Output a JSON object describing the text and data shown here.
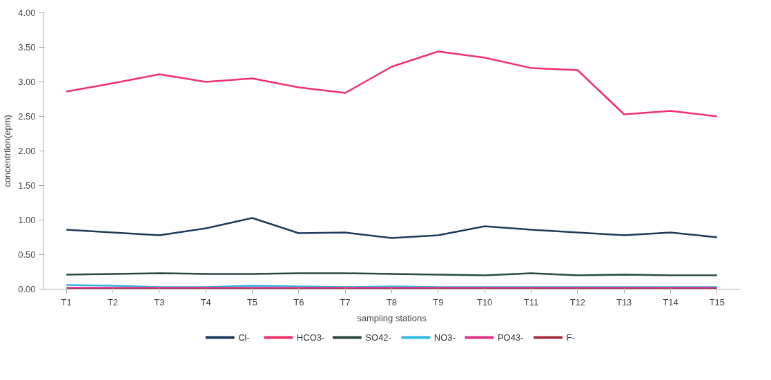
{
  "chart_data": {
    "type": "line",
    "xlabel": "sampling stations",
    "ylabel": "concentrtion(epm)",
    "categories": [
      "T1",
      "T2",
      "T3",
      "T4",
      "T5",
      "T6",
      "T7",
      "T8",
      "T9",
      "T10",
      "T11",
      "T12",
      "T13",
      "T14",
      "T15"
    ],
    "series": [
      {
        "name": "Cl-",
        "color": "#1f3a5a",
        "values": [
          0.86,
          0.82,
          0.78,
          0.88,
          1.03,
          0.81,
          0.82,
          0.74,
          0.78,
          0.91,
          0.86,
          0.82,
          0.78,
          0.82,
          0.75
        ]
      },
      {
        "name": "HCO3-",
        "color": "#f0306a",
        "values": [
          2.86,
          2.98,
          3.11,
          3.0,
          3.05,
          2.92,
          2.84,
          3.22,
          3.44,
          3.35,
          3.2,
          3.17,
          2.53,
          2.58,
          2.5
        ]
      },
      {
        "name": "SO42-",
        "color": "#2a4a3a",
        "values": [
          0.21,
          0.22,
          0.23,
          0.22,
          0.22,
          0.23,
          0.23,
          0.22,
          0.21,
          0.2,
          0.23,
          0.2,
          0.21,
          0.2,
          0.2
        ]
      },
      {
        "name": "NO3-",
        "color": "#30b8e0",
        "values": [
          0.06,
          0.05,
          0.03,
          0.03,
          0.05,
          0.04,
          0.03,
          0.04,
          0.03,
          0.03,
          0.03,
          0.03,
          0.03,
          0.03,
          0.03
        ]
      },
      {
        "name": "PO43-",
        "color": "#e0308a",
        "values": [
          0.02,
          0.02,
          0.02,
          0.02,
          0.02,
          0.02,
          0.02,
          0.02,
          0.02,
          0.02,
          0.02,
          0.02,
          0.02,
          0.02,
          0.02
        ]
      },
      {
        "name": "F-",
        "color": "#a0303a",
        "values": [
          0,
          0,
          0,
          0,
          0,
          0,
          0,
          0,
          0,
          0,
          0,
          0,
          0,
          0,
          0
        ]
      }
    ],
    "ylim": [
      0,
      4
    ],
    "yticks": [
      {
        "value": 0,
        "label": "0.00"
      },
      {
        "value": 0.5,
        "label": "0.50"
      },
      {
        "value": 1,
        "label": "1.00"
      },
      {
        "value": 1.5,
        "label": "1.50"
      },
      {
        "value": 2,
        "label": "2.00"
      },
      {
        "value": 2.5,
        "label": "2.50"
      },
      {
        "value": 3,
        "label": "3.00"
      },
      {
        "value": 3.5,
        "label": "3.50"
      },
      {
        "value": 4,
        "label": "4.00"
      }
    ],
    "grid": false,
    "legend": "bottom",
    "marker": "none",
    "line_style": "solid"
  }
}
